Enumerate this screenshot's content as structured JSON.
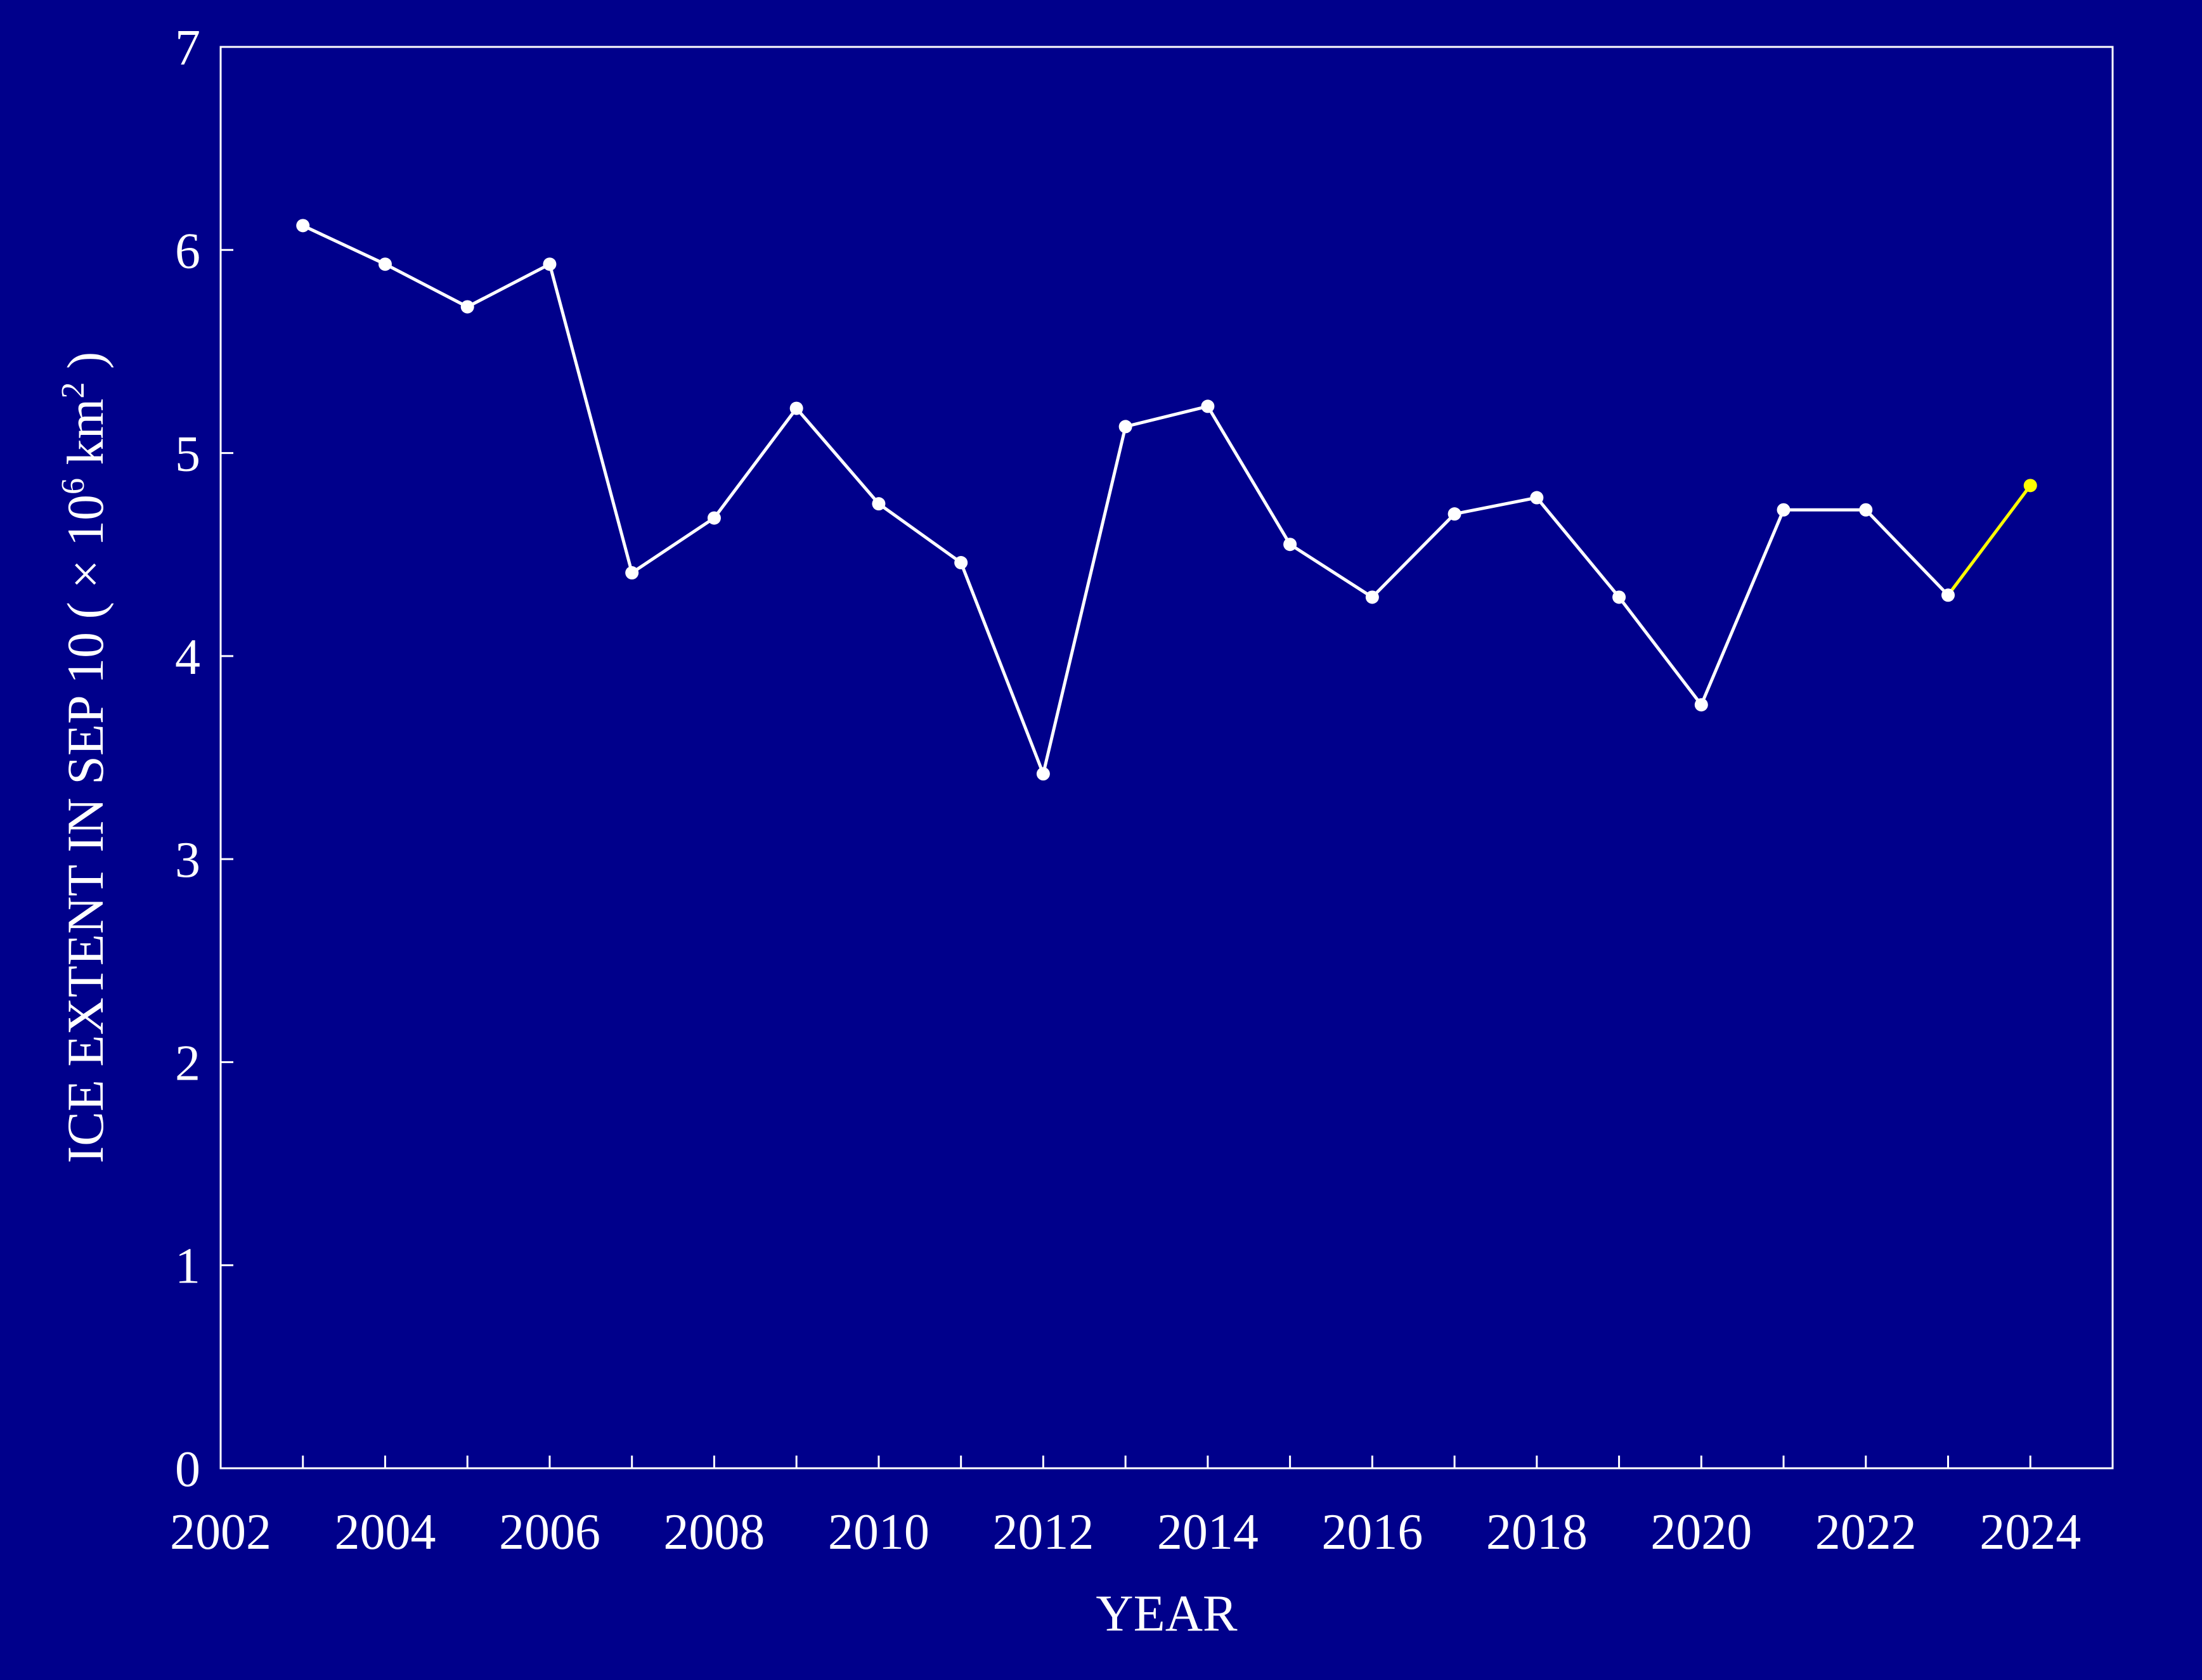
{
  "chart_data": {
    "type": "line",
    "xlabel": "YEAR",
    "ylabel": {
      "main": "ICE EXTENT IN SEP 10 ( × 10",
      "sup1": "6",
      "mid": " km",
      "sup2": "2",
      "end": " )"
    },
    "xlim": [
      2002,
      2025
    ],
    "ylim": [
      0,
      7
    ],
    "xticks_labeled": [
      2002,
      2004,
      2006,
      2008,
      2010,
      2012,
      2014,
      2016,
      2018,
      2020,
      2022,
      2024
    ],
    "xticks_minor": [
      2003,
      2005,
      2007,
      2009,
      2011,
      2013,
      2015,
      2017,
      2019,
      2021,
      2023
    ],
    "yticks": [
      0,
      1,
      2,
      3,
      4,
      5,
      6,
      7
    ],
    "grid": false,
    "background_color": "#00008b",
    "series": [
      {
        "color": "#ffffff",
        "x": [
          2003,
          2004,
          2005,
          2006,
          2007,
          2008,
          2009,
          2010,
          2011,
          2012,
          2013,
          2014,
          2015,
          2016,
          2017,
          2018,
          2019,
          2020,
          2021,
          2022,
          2023
        ],
        "y": [
          6.12,
          5.93,
          5.72,
          5.93,
          4.41,
          4.68,
          5.22,
          4.75,
          4.46,
          3.42,
          5.13,
          5.23,
          4.55,
          4.29,
          4.7,
          4.78,
          4.29,
          3.76,
          4.72,
          4.72,
          4.3
        ]
      },
      {
        "color": "#ffff00",
        "x": [
          2023,
          2024
        ],
        "y": [
          4.3,
          4.84
        ],
        "marker_color": "#ffff00"
      }
    ]
  }
}
